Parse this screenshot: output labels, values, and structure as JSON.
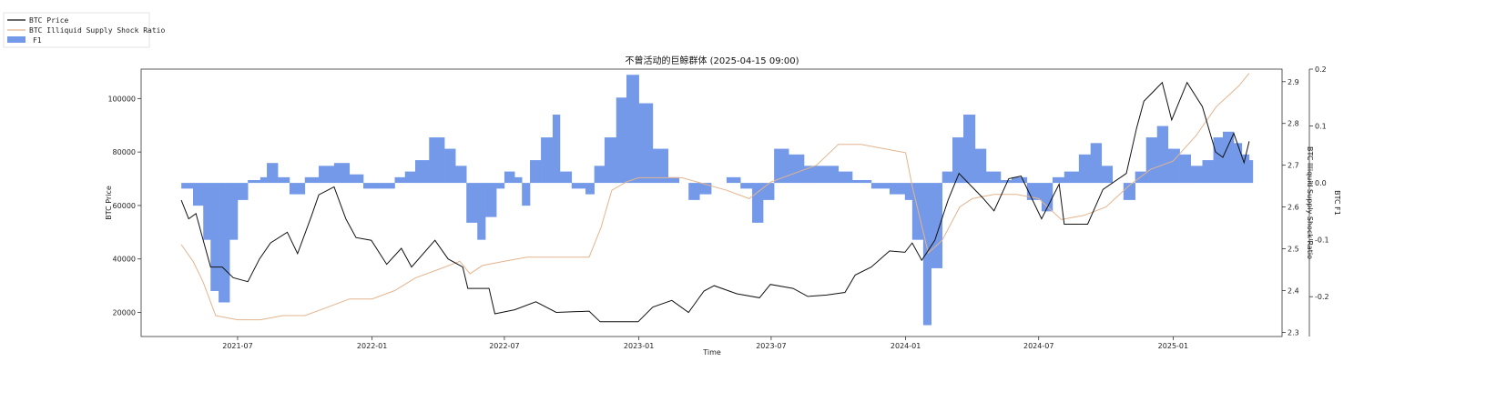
{
  "chart_data": {
    "type": "area",
    "title": "不曾活动的巨鲸群体 (2025-04-15 09:00)",
    "xlabel": "Time",
    "ylabel_left": "BTC Price",
    "ylabel_right1": "BTC Illiquid Supply Shock Ratio",
    "ylabel_right2": "BTC F1",
    "legend": [
      "BTC Price",
      "BTC Illiquid Supply Shock Ratio",
      "F1"
    ],
    "legend_position": "top-left outside",
    "x_ticks": [
      "2021-07",
      "2022-01",
      "2022-07",
      "2023-01",
      "2023-07",
      "2024-01",
      "2024-07",
      "2025-01"
    ],
    "x_range": [
      "2021-04-15",
      "2025-04-15"
    ],
    "y_left": {
      "ticks": [
        20000,
        40000,
        60000,
        80000,
        100000
      ],
      "range": [
        11000,
        111000
      ]
    },
    "y_right1": {
      "ticks": [
        2.3,
        2.4,
        2.5,
        2.6,
        2.7,
        2.8,
        2.9
      ],
      "range": [
        2.29,
        2.93
      ]
    },
    "y_right2": {
      "ticks": [
        -0.2,
        -0.1,
        0.0,
        0.1,
        0.2
      ],
      "range": [
        -0.27,
        0.2
      ]
    },
    "colors": {
      "price": "#111111",
      "ratio": "#e3b48e",
      "f1": "#7499e8"
    },
    "series": [
      {
        "name": "BTC Price",
        "axis": "left",
        "points": [
          [
            "2021-04-15",
            62000
          ],
          [
            "2021-04-25",
            55000
          ],
          [
            "2021-05-05",
            57000
          ],
          [
            "2021-05-15",
            47000
          ],
          [
            "2021-05-25",
            37000
          ],
          [
            "2021-06-10",
            37000
          ],
          [
            "2021-06-25",
            33000
          ],
          [
            "2021-07-15",
            31500
          ],
          [
            "2021-07-31",
            40000
          ],
          [
            "2021-08-15",
            46000
          ],
          [
            "2021-09-07",
            50000
          ],
          [
            "2021-09-21",
            42000
          ],
          [
            "2021-10-10",
            56000
          ],
          [
            "2021-10-20",
            64000
          ],
          [
            "2021-11-10",
            67000
          ],
          [
            "2021-11-26",
            55000
          ],
          [
            "2021-12-10",
            48000
          ],
          [
            "2021-12-31",
            47000
          ],
          [
            "2022-01-21",
            38000
          ],
          [
            "2022-02-10",
            44000
          ],
          [
            "2022-02-24",
            37000
          ],
          [
            "2022-03-28",
            47000
          ],
          [
            "2022-04-15",
            40000
          ],
          [
            "2022-05-05",
            37000
          ],
          [
            "2022-05-12",
            29000
          ],
          [
            "2022-06-10",
            29000
          ],
          [
            "2022-06-18",
            19500
          ],
          [
            "2022-07-15",
            21000
          ],
          [
            "2022-08-13",
            24000
          ],
          [
            "2022-09-10",
            20000
          ],
          [
            "2022-10-25",
            20500
          ],
          [
            "2022-11-09",
            16500
          ],
          [
            "2022-12-31",
            16500
          ],
          [
            "2023-01-20",
            22000
          ],
          [
            "2023-02-15",
            24500
          ],
          [
            "2023-03-10",
            20000
          ],
          [
            "2023-03-31",
            28000
          ],
          [
            "2023-04-14",
            30000
          ],
          [
            "2023-05-15",
            27000
          ],
          [
            "2023-06-15",
            25500
          ],
          [
            "2023-06-30",
            30500
          ],
          [
            "2023-07-31",
            29000
          ],
          [
            "2023-08-20",
            26000
          ],
          [
            "2023-09-15",
            26500
          ],
          [
            "2023-10-10",
            27500
          ],
          [
            "2023-10-24",
            34000
          ],
          [
            "2023-11-15",
            37000
          ],
          [
            "2023-12-10",
            43000
          ],
          [
            "2023-12-31",
            42500
          ],
          [
            "2024-01-10",
            46000
          ],
          [
            "2024-01-23",
            39500
          ],
          [
            "2024-02-10",
            47000
          ],
          [
            "2024-02-28",
            62000
          ],
          [
            "2024-03-14",
            72000
          ],
          [
            "2024-04-15",
            63000
          ],
          [
            "2024-05-01",
            58000
          ],
          [
            "2024-05-21",
            70000
          ],
          [
            "2024-06-07",
            71000
          ],
          [
            "2024-07-05",
            55000
          ],
          [
            "2024-07-29",
            68000
          ],
          [
            "2024-08-05",
            53000
          ],
          [
            "2024-09-06",
            53000
          ],
          [
            "2024-09-27",
            66000
          ],
          [
            "2024-10-29",
            72000
          ],
          [
            "2024-11-12",
            89000
          ],
          [
            "2024-11-22",
            99000
          ],
          [
            "2024-12-17",
            106000
          ],
          [
            "2024-12-30",
            92000
          ],
          [
            "2025-01-20",
            106000
          ],
          [
            "2025-02-10",
            97000
          ],
          [
            "2025-02-28",
            80000
          ],
          [
            "2025-03-10",
            78000
          ],
          [
            "2025-03-25",
            87000
          ],
          [
            "2025-04-08",
            76000
          ],
          [
            "2025-04-15",
            84000
          ]
        ]
      },
      {
        "name": "BTC Illiquid Supply Shock Ratio",
        "axis": "right1",
        "points": [
          [
            "2021-04-15",
            2.51
          ],
          [
            "2021-05-01",
            2.47
          ],
          [
            "2021-05-15",
            2.42
          ],
          [
            "2021-06-01",
            2.34
          ],
          [
            "2021-07-01",
            2.33
          ],
          [
            "2021-08-01",
            2.33
          ],
          [
            "2021-09-01",
            2.34
          ],
          [
            "2021-10-01",
            2.34
          ],
          [
            "2021-11-01",
            2.36
          ],
          [
            "2021-12-01",
            2.38
          ],
          [
            "2022-01-01",
            2.38
          ],
          [
            "2022-02-01",
            2.4
          ],
          [
            "2022-03-01",
            2.43
          ],
          [
            "2022-04-01",
            2.45
          ],
          [
            "2022-05-01",
            2.47
          ],
          [
            "2022-05-15",
            2.44
          ],
          [
            "2022-06-01",
            2.46
          ],
          [
            "2022-07-01",
            2.47
          ],
          [
            "2022-08-01",
            2.48
          ],
          [
            "2022-09-01",
            2.48
          ],
          [
            "2022-10-01",
            2.48
          ],
          [
            "2022-10-25",
            2.48
          ],
          [
            "2022-11-10",
            2.55
          ],
          [
            "2022-11-25",
            2.64
          ],
          [
            "2022-12-15",
            2.66
          ],
          [
            "2023-01-01",
            2.67
          ],
          [
            "2023-03-01",
            2.67
          ],
          [
            "2023-05-01",
            2.64
          ],
          [
            "2023-06-01",
            2.62
          ],
          [
            "2023-07-01",
            2.66
          ],
          [
            "2023-08-01",
            2.68
          ],
          [
            "2023-09-01",
            2.7
          ],
          [
            "2023-10-01",
            2.75
          ],
          [
            "2023-11-01",
            2.75
          ],
          [
            "2023-12-01",
            2.74
          ],
          [
            "2024-01-01",
            2.73
          ],
          [
            "2024-01-10",
            2.65
          ],
          [
            "2024-02-01",
            2.49
          ],
          [
            "2024-02-20",
            2.52
          ],
          [
            "2024-03-15",
            2.6
          ],
          [
            "2024-04-01",
            2.62
          ],
          [
            "2024-05-01",
            2.63
          ],
          [
            "2024-06-01",
            2.63
          ],
          [
            "2024-07-01",
            2.62
          ],
          [
            "2024-08-01",
            2.57
          ],
          [
            "2024-09-01",
            2.58
          ],
          [
            "2024-10-01",
            2.6
          ],
          [
            "2024-11-01",
            2.65
          ],
          [
            "2024-12-01",
            2.69
          ],
          [
            "2025-01-01",
            2.71
          ],
          [
            "2025-02-01",
            2.77
          ],
          [
            "2025-03-01",
            2.84
          ],
          [
            "2025-04-01",
            2.89
          ],
          [
            "2025-04-15",
            2.92
          ]
        ]
      },
      {
        "name": "F1",
        "axis": "right2",
        "points": [
          [
            "2021-04-15",
            -0.01
          ],
          [
            "2021-05-01",
            -0.04
          ],
          [
            "2021-05-15",
            -0.1
          ],
          [
            "2021-05-25",
            -0.19
          ],
          [
            "2021-06-05",
            -0.21
          ],
          [
            "2021-06-20",
            -0.1
          ],
          [
            "2021-07-01",
            -0.03
          ],
          [
            "2021-07-15",
            0.005
          ],
          [
            "2021-08-01",
            0.01
          ],
          [
            "2021-08-10",
            0.035
          ],
          [
            "2021-08-25",
            0.01
          ],
          [
            "2021-09-10",
            -0.02
          ],
          [
            "2021-10-01",
            0.01
          ],
          [
            "2021-10-20",
            0.03
          ],
          [
            "2021-11-10",
            0.035
          ],
          [
            "2021-12-01",
            0.015
          ],
          [
            "2021-12-20",
            -0.01
          ],
          [
            "2022-01-15",
            -0.01
          ],
          [
            "2022-02-01",
            0.01
          ],
          [
            "2022-02-15",
            0.02
          ],
          [
            "2022-03-01",
            0.04
          ],
          [
            "2022-03-20",
            0.08
          ],
          [
            "2022-04-10",
            0.06
          ],
          [
            "2022-04-25",
            0.03
          ],
          [
            "2022-05-10",
            -0.07
          ],
          [
            "2022-05-25",
            -0.1
          ],
          [
            "2022-06-05",
            -0.06
          ],
          [
            "2022-06-20",
            -0.01
          ],
          [
            "2022-07-01",
            0.02
          ],
          [
            "2022-07-15",
            0.01
          ],
          [
            "2022-07-25",
            -0.04
          ],
          [
            "2022-08-05",
            0.04
          ],
          [
            "2022-08-20",
            0.08
          ],
          [
            "2022-09-05",
            0.12
          ],
          [
            "2022-09-15",
            0.02
          ],
          [
            "2022-10-01",
            -0.01
          ],
          [
            "2022-10-20",
            -0.02
          ],
          [
            "2022-11-01",
            0.03
          ],
          [
            "2022-11-15",
            0.08
          ],
          [
            "2022-12-01",
            0.15
          ],
          [
            "2022-12-15",
            0.19
          ],
          [
            "2023-01-01",
            0.14
          ],
          [
            "2023-01-20",
            0.06
          ],
          [
            "2023-02-10",
            0.01
          ],
          [
            "2023-02-25",
            0.0
          ],
          [
            "2023-03-10",
            -0.03
          ],
          [
            "2023-03-25",
            -0.02
          ],
          [
            "2023-04-10",
            0.0
          ],
          [
            "2023-05-01",
            0.01
          ],
          [
            "2023-05-20",
            -0.01
          ],
          [
            "2023-06-05",
            -0.07
          ],
          [
            "2023-06-20",
            -0.03
          ],
          [
            "2023-07-05",
            0.06
          ],
          [
            "2023-07-25",
            0.05
          ],
          [
            "2023-08-15",
            0.03
          ],
          [
            "2023-09-10",
            0.03
          ],
          [
            "2023-10-01",
            0.02
          ],
          [
            "2023-10-20",
            0.005
          ],
          [
            "2023-11-15",
            -0.01
          ],
          [
            "2023-12-10",
            -0.02
          ],
          [
            "2023-12-31",
            -0.03
          ],
          [
            "2024-01-10",
            -0.1
          ],
          [
            "2024-01-25",
            -0.25
          ],
          [
            "2024-02-05",
            -0.15
          ],
          [
            "2024-02-20",
            0.02
          ],
          [
            "2024-03-05",
            0.08
          ],
          [
            "2024-03-20",
            0.12
          ],
          [
            "2024-04-05",
            0.06
          ],
          [
            "2024-04-20",
            0.02
          ],
          [
            "2024-05-10",
            0.005
          ],
          [
            "2024-05-25",
            0.01
          ],
          [
            "2024-06-15",
            -0.03
          ],
          [
            "2024-07-05",
            -0.05
          ],
          [
            "2024-07-20",
            0.01
          ],
          [
            "2024-08-05",
            0.02
          ],
          [
            "2024-08-25",
            0.05
          ],
          [
            "2024-09-10",
            0.07
          ],
          [
            "2024-09-25",
            0.03
          ],
          [
            "2024-10-10",
            0.0
          ],
          [
            "2024-10-25",
            -0.03
          ],
          [
            "2024-11-10",
            0.02
          ],
          [
            "2024-11-25",
            0.08
          ],
          [
            "2024-12-10",
            0.1
          ],
          [
            "2024-12-25",
            0.06
          ],
          [
            "2025-01-10",
            0.05
          ],
          [
            "2025-01-25",
            0.03
          ],
          [
            "2025-02-10",
            0.04
          ],
          [
            "2025-02-25",
            0.08
          ],
          [
            "2025-03-10",
            0.09
          ],
          [
            "2025-03-25",
            0.07
          ],
          [
            "2025-04-05",
            0.05
          ],
          [
            "2025-04-15",
            0.04
          ]
        ]
      }
    ]
  }
}
